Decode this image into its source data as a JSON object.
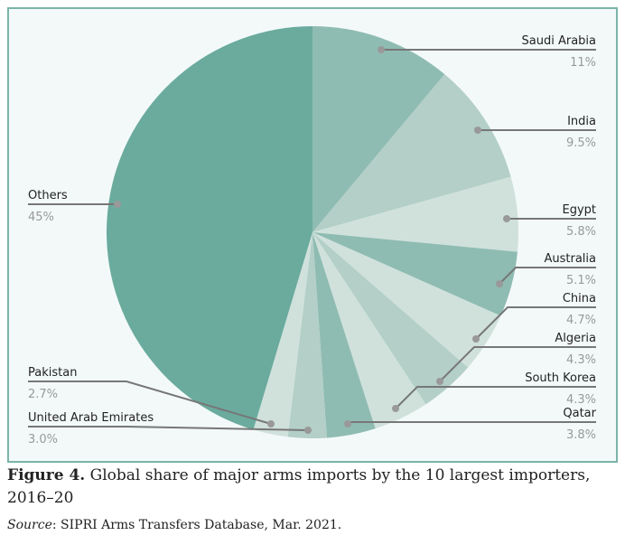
{
  "chart_data": {
    "type": "pie",
    "categories": [
      "Saudi Arabia",
      "India",
      "Egypt",
      "Australia",
      "China",
      "Algeria",
      "South Korea",
      "Qatar",
      "United Arab Emirates",
      "Pakistan",
      "Others"
    ],
    "values": [
      11,
      9.5,
      5.8,
      5.1,
      4.7,
      4.3,
      4.3,
      3.8,
      3.0,
      2.7,
      45
    ],
    "value_labels": [
      "11%",
      "9.5%",
      "5.8%",
      "5.1%",
      "4.7%",
      "4.3%",
      "4.3%",
      "3.8%",
      "3.0%",
      "2.7%",
      "45%"
    ],
    "colors": [
      "#8fbcb2",
      "#b3cfc7",
      "#d0e1db",
      "#8fbcb2",
      "#d0e1db",
      "#b3cfc7",
      "#d0e1db",
      "#8fbcb2",
      "#b3cfc7",
      "#d0e1db",
      "#6aab9e"
    ],
    "start": "top",
    "direction": "clockwise"
  },
  "caption": {
    "figure_label": "Figure 4.",
    "text": " Global share of major arms imports by the 10 largest importers, 2016–20",
    "source_label": "Source",
    "source_text": ": SIPRI Arms Transfers Database, Mar. 2021."
  }
}
